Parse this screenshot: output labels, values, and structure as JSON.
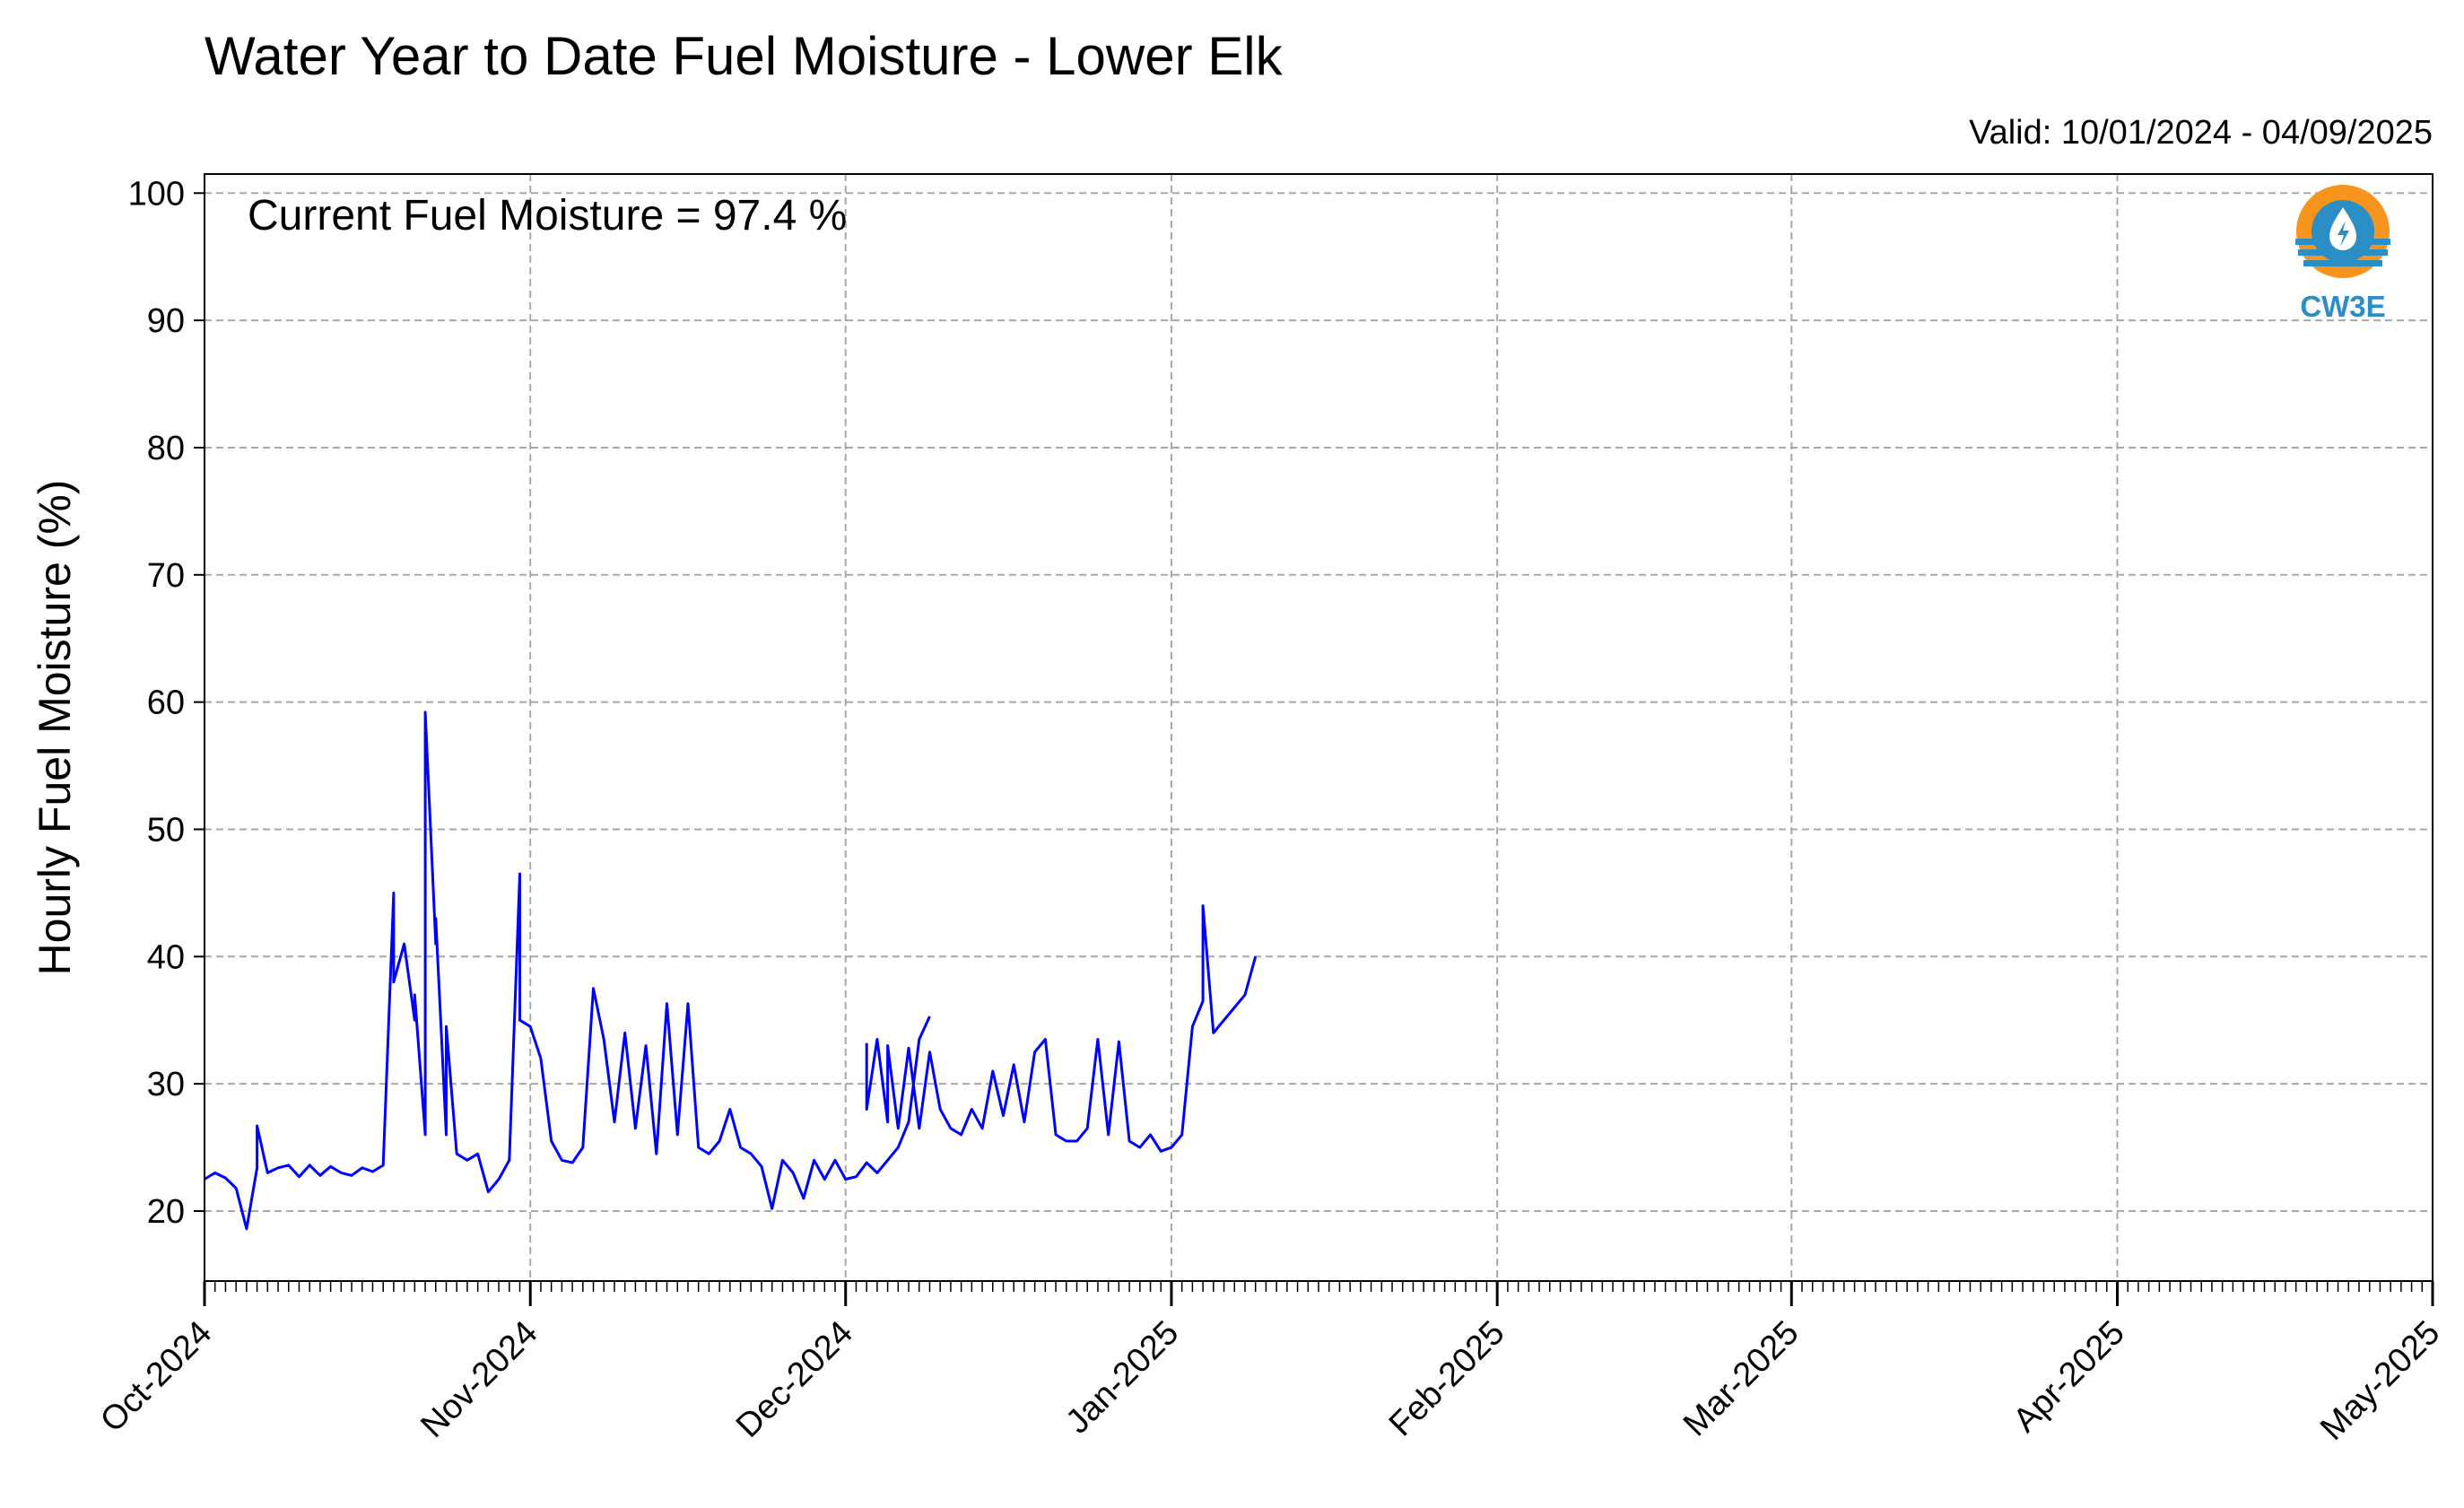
{
  "chart_data": {
    "type": "line",
    "title": "Water Year to Date Fuel Moisture - Lower Elk",
    "subtitle": "Valid: 10/01/2024 - 04/09/2025",
    "annotation": "Current Fuel Moisture = 97.4 %",
    "xlabel": "",
    "ylabel": "Hourly Fuel Moisture (%)",
    "xlim": [
      "2024-10-01",
      "2025-05-01"
    ],
    "ylim": [
      14.5,
      101.5
    ],
    "y_ticks": [
      20,
      30,
      40,
      50,
      60,
      70,
      80,
      90,
      100
    ],
    "y_tick_labels": [
      "20",
      "30",
      "40",
      "50",
      "60",
      "70",
      "80",
      "90",
      "100"
    ],
    "x_ticks": [
      "2024-10-01",
      "2024-11-01",
      "2024-12-01",
      "2025-01-01",
      "2025-02-01",
      "2025-03-01",
      "2025-04-01",
      "2025-05-01"
    ],
    "x_tick_labels": [
      "Oct-2024",
      "Nov-2024",
      "Dec-2024",
      "Jan-2025",
      "Feb-2025",
      "Mar-2025",
      "Apr-2025",
      "May-2025"
    ],
    "grid": true,
    "line_color": "#0000ff",
    "series": [
      {
        "segments": [
          [
            [
              "2024-10-01",
              22.5
            ],
            [
              "2024-10-02",
              23.0
            ],
            [
              "2024-10-03",
              22.6
            ],
            [
              "2024-10-04",
              21.8
            ],
            [
              "2024-10-05",
              18.6
            ],
            [
              "2024-10-06",
              23.4
            ],
            [
              "2024-10-06",
              26.7
            ],
            [
              "2024-10-07",
              23.0
            ],
            [
              "2024-10-08",
              23.4
            ],
            [
              "2024-10-09",
              23.6
            ],
            [
              "2024-10-10",
              22.7
            ],
            [
              "2024-10-11",
              23.6
            ],
            [
              "2024-10-12",
              22.8
            ],
            [
              "2024-10-13",
              23.5
            ],
            [
              "2024-10-14",
              23.0
            ],
            [
              "2024-10-15",
              22.8
            ],
            [
              "2024-10-16",
              23.4
            ],
            [
              "2024-10-17",
              23.1
            ],
            [
              "2024-10-18",
              23.6
            ],
            [
              "2024-10-19",
              45.0
            ],
            [
              "2024-10-19",
              38.0
            ],
            [
              "2024-10-20",
              41.0
            ],
            [
              "2024-10-21",
              35.0
            ],
            [
              "2024-10-21",
              37.0
            ],
            [
              "2024-10-22",
              26.0
            ],
            [
              "2024-10-22",
              54.0
            ],
            [
              "2024-10-22",
              59.2
            ],
            [
              "2024-10-23",
              41.0
            ],
            [
              "2024-10-23",
              43.0
            ],
            [
              "2024-10-24",
              26.0
            ],
            [
              "2024-10-24",
              34.5
            ],
            [
              "2024-10-25",
              24.5
            ],
            [
              "2024-10-26",
              24.0
            ],
            [
              "2024-10-27",
              24.5
            ],
            [
              "2024-10-28",
              21.5
            ],
            [
              "2024-10-29",
              22.5
            ],
            [
              "2024-10-30",
              24.0
            ],
            [
              "2024-10-30",
              24.0
            ],
            [
              "2024-10-31",
              46.5
            ],
            [
              "2024-10-31",
              35.0
            ],
            [
              "2024-11-01",
              34.5
            ],
            [
              "2024-11-02",
              32.0
            ],
            [
              "2024-11-03",
              25.5
            ],
            [
              "2024-11-04",
              24.0
            ],
            [
              "2024-11-05",
              23.8
            ],
            [
              "2024-11-06",
              25.0
            ],
            [
              "2024-11-07",
              37.5
            ],
            [
              "2024-11-08",
              33.5
            ],
            [
              "2024-11-09",
              27.0
            ],
            [
              "2024-11-10",
              34.0
            ],
            [
              "2024-11-11",
              26.5
            ],
            [
              "2024-11-12",
              33.0
            ],
            [
              "2024-11-13",
              24.5
            ],
            [
              "2024-11-14",
              36.3
            ],
            [
              "2024-11-15",
              26.0
            ],
            [
              "2024-11-16",
              36.3
            ],
            [
              "2024-11-17",
              25.0
            ],
            [
              "2024-11-18",
              24.5
            ],
            [
              "2024-11-19",
              25.5
            ],
            [
              "2024-11-20",
              28.0
            ],
            [
              "2024-11-21",
              25.0
            ],
            [
              "2024-11-22",
              24.5
            ],
            [
              "2024-11-23",
              23.5
            ],
            [
              "2024-11-24",
              20.2
            ],
            [
              "2024-11-25",
              24.0
            ],
            [
              "2024-11-26",
              23.0
            ],
            [
              "2024-11-27",
              21.0
            ],
            [
              "2024-11-28",
              24.0
            ],
            [
              "2024-11-29",
              22.5
            ],
            [
              "2024-11-30",
              24.0
            ],
            [
              "2024-12-01",
              22.5
            ],
            [
              "2024-12-02",
              22.7
            ],
            [
              "2024-12-03",
              23.8
            ],
            [
              "2024-12-04",
              23.0
            ],
            [
              "2024-12-05",
              24.0
            ],
            [
              "2024-12-06",
              25.0
            ],
            [
              "2024-12-07",
              27.0
            ],
            [
              "2024-12-08",
              33.5
            ],
            [
              "2024-12-09",
              35.3
            ]
          ],
          [
            [
              "2024-12-03",
              33.2
            ],
            [
              "2024-12-03",
              28.0
            ],
            [
              "2024-12-04",
              33.5
            ],
            [
              "2024-12-05",
              27.0
            ],
            [
              "2024-12-05",
              33.0
            ],
            [
              "2024-12-06",
              26.5
            ],
            [
              "2024-12-07",
              32.8
            ],
            [
              "2024-12-08",
              26.5
            ],
            [
              "2024-12-09",
              32.5
            ],
            [
              "2024-12-10",
              28.0
            ],
            [
              "2024-12-11",
              26.5
            ],
            [
              "2024-12-12",
              26.0
            ],
            [
              "2024-12-13",
              28.0
            ],
            [
              "2024-12-14",
              26.5
            ],
            [
              "2024-12-15",
              31.0
            ],
            [
              "2024-12-16",
              27.5
            ],
            [
              "2024-12-17",
              31.5
            ],
            [
              "2024-12-18",
              27.0
            ],
            [
              "2024-12-19",
              32.5
            ],
            [
              "2024-12-20",
              33.5
            ],
            [
              "2024-12-21",
              26.0
            ],
            [
              "2024-12-22",
              25.5
            ],
            [
              "2024-12-23",
              25.5
            ],
            [
              "2024-12-24",
              26.5
            ],
            [
              "2024-12-25",
              33.5
            ],
            [
              "2024-12-26",
              26.0
            ],
            [
              "2024-12-27",
              33.3
            ],
            [
              "2024-12-28",
              25.5
            ],
            [
              "2024-12-29",
              25.0
            ],
            [
              "2024-12-30",
              26.0
            ],
            [
              "2024-12-31",
              24.7
            ],
            [
              "2025-01-01",
              25.0
            ],
            [
              "2025-01-02",
              26.0
            ],
            [
              "2025-01-03",
              34.5
            ],
            [
              "2025-01-04",
              36.5
            ],
            [
              "2025-01-04",
              44.0
            ],
            [
              "2025-01-05",
              34.0
            ],
            [
              "2025-01-06",
              35.0
            ],
            [
              "2025-01-07",
              36.0
            ],
            [
              "2025-01-08",
              37.0
            ],
            [
              "2025-01-09",
              40.0
            ]
          ]
        ]
      }
    ]
  },
  "logo": {
    "text": "CW3E",
    "colors": {
      "orange": "#f7941d",
      "blue": "#2b8fc6"
    }
  }
}
